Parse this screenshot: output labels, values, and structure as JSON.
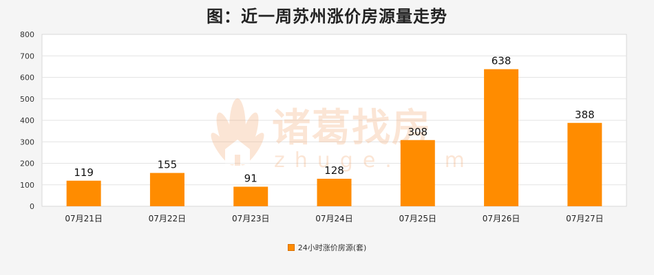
{
  "chart_data": {
    "type": "bar",
    "title": "图：近一周苏州涨价房源量走势",
    "categories": [
      "07月21日",
      "07月22日",
      "07月23日",
      "07月24日",
      "07月25日",
      "07月26日",
      "07月27日"
    ],
    "series": [
      {
        "name": "24小时涨价房源(套)",
        "values": [
          119,
          155,
          91,
          128,
          308,
          638,
          388
        ]
      }
    ],
    "ylim": [
      0,
      800
    ],
    "yticks": [
      0,
      100,
      200,
      300,
      400,
      500,
      600,
      700,
      800
    ],
    "grid": true,
    "legend_position": "bottom-center",
    "bar_color": "#ff8c00"
  },
  "watermark": {
    "text": "诸葛找房",
    "subtext": "zhuge.com"
  }
}
